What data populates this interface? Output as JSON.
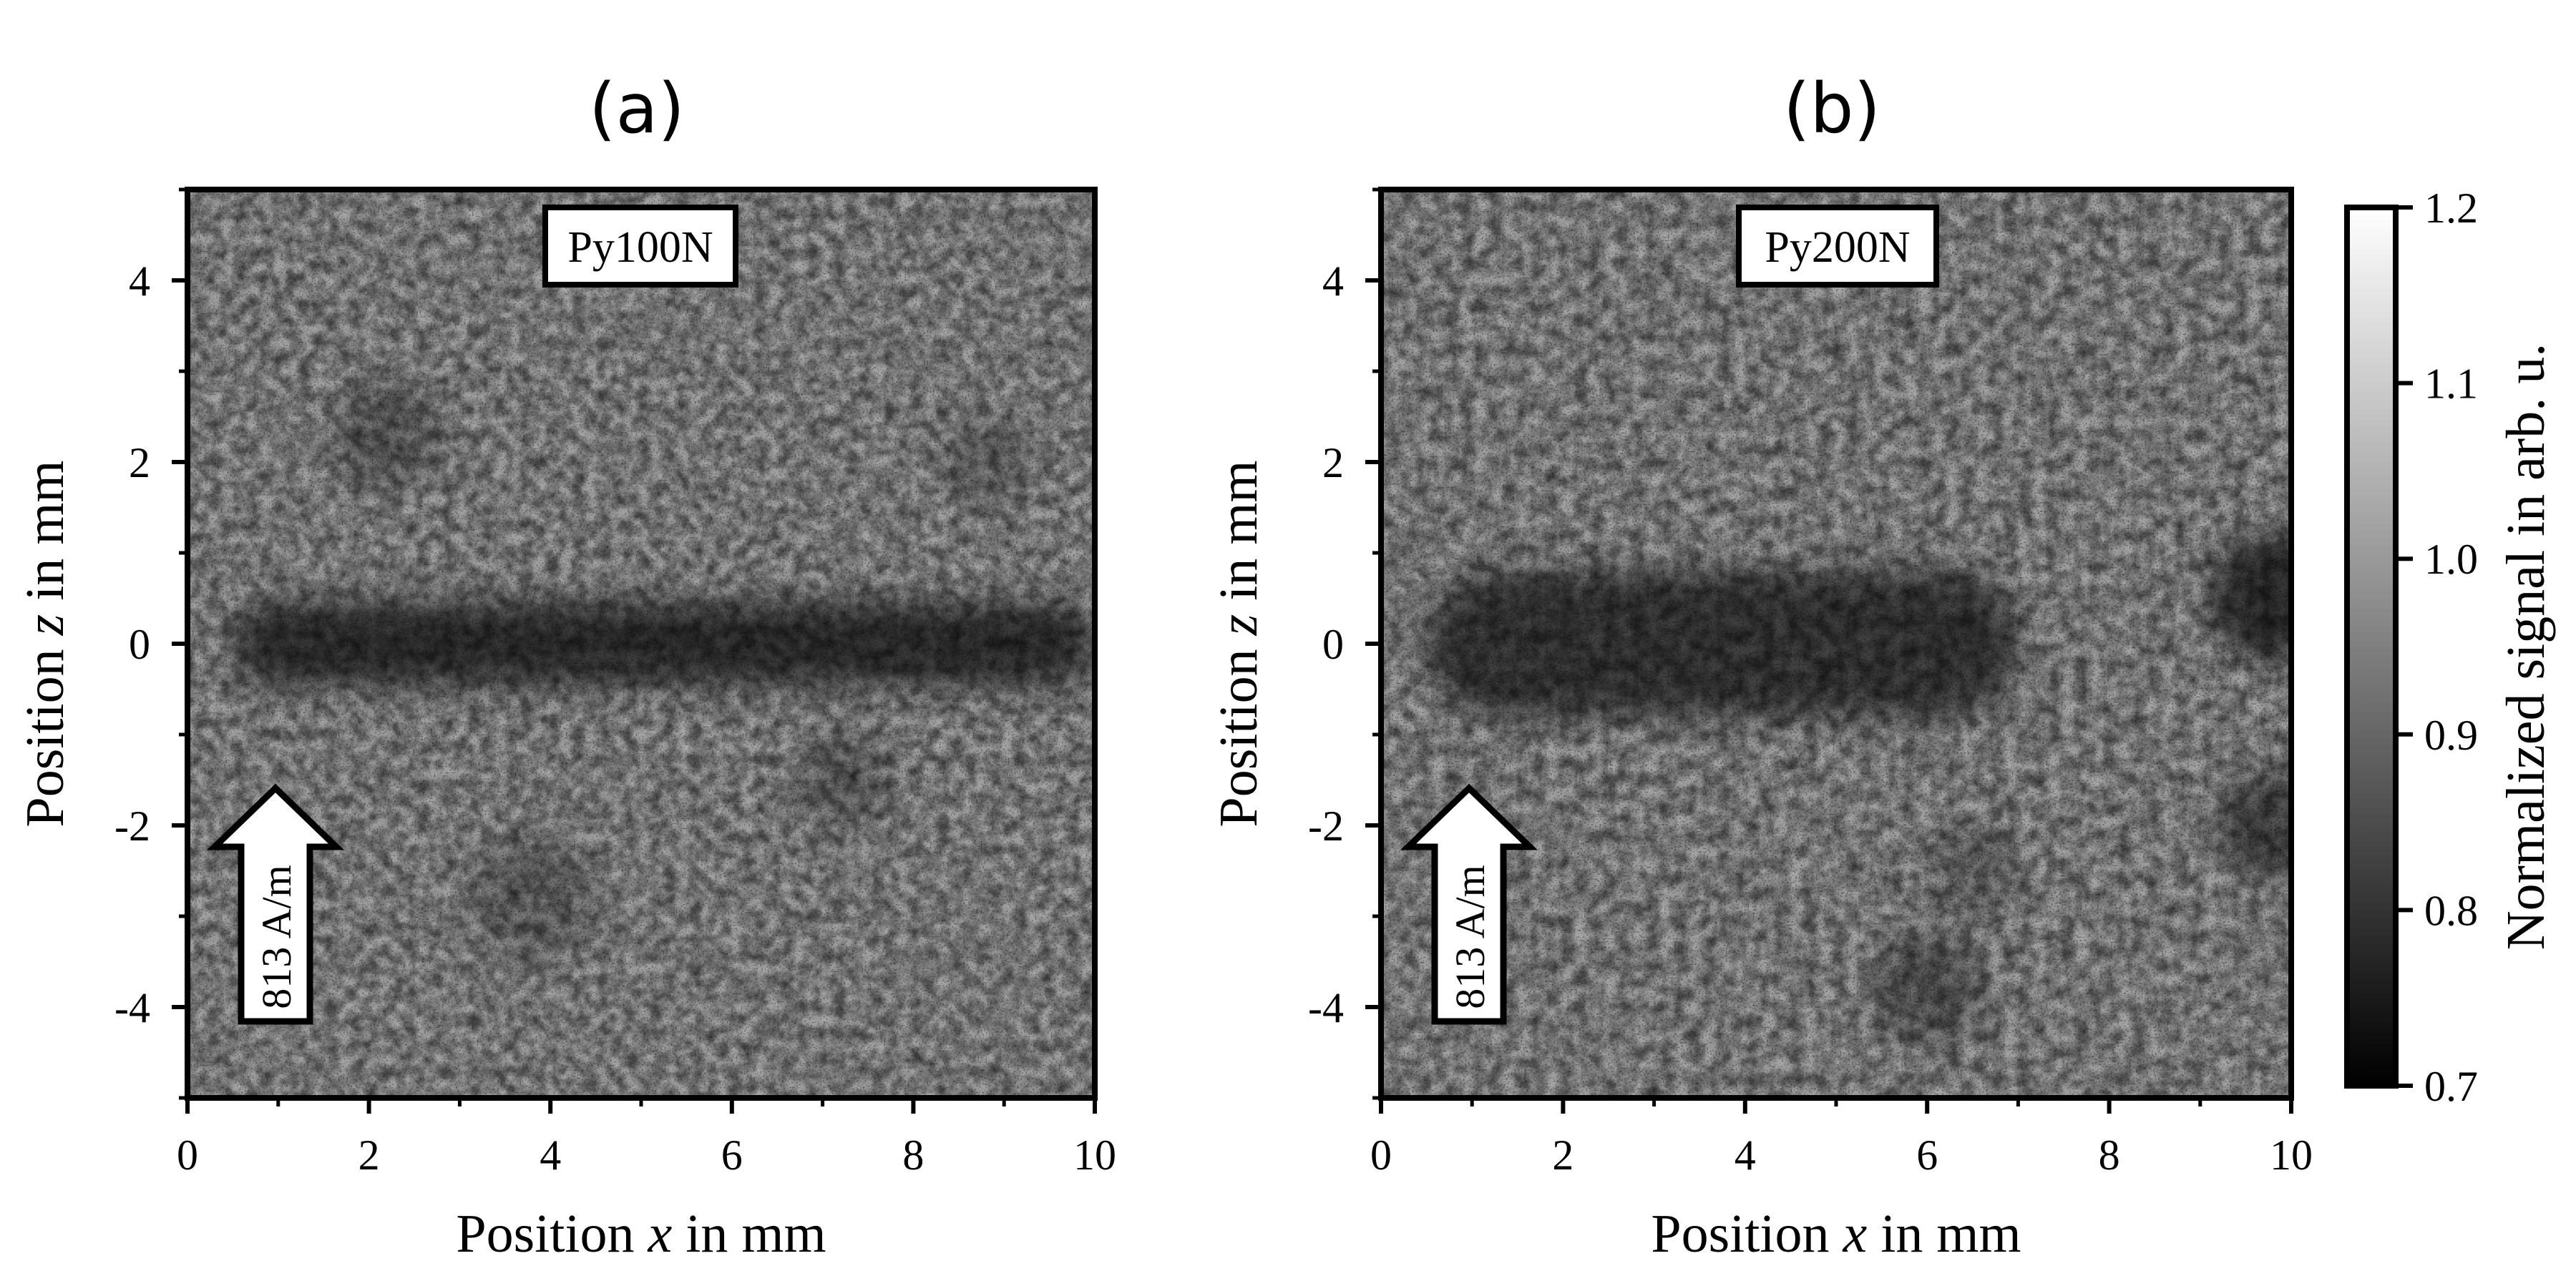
{
  "chart_data": [
    {
      "type": "heatmap",
      "panel_label": "(a)",
      "sample_label": "Py100N",
      "xlabel_prefix": "Position",
      "xlabel_var": "x",
      "xlabel_suffix": "in mm",
      "ylabel_prefix": "Position",
      "ylabel_var": "z",
      "ylabel_suffix": "in mm",
      "xlim": [
        0,
        10
      ],
      "ylim": [
        -5,
        5
      ],
      "xticks": [
        "0",
        "2",
        "4",
        "6",
        "8",
        "10"
      ],
      "xtick_values": [
        0,
        2,
        4,
        6,
        8,
        10
      ],
      "yticks": [
        "4",
        "2",
        "0",
        "-2",
        "-4"
      ],
      "ytick_values": [
        4,
        2,
        0,
        -2,
        -4
      ],
      "field_arrow_label": "813 A/m",
      "dark_band": {
        "z_center": 0,
        "z_halfwidth": 0.45,
        "x_start": 0.5,
        "x_end": 10,
        "depth": 0.22
      },
      "extra_dark_blobs": [
        {
          "x": 2.2,
          "z": 2.3,
          "r": 0.6,
          "depth": 0.1
        },
        {
          "x": 3.8,
          "z": -2.8,
          "r": 0.7,
          "depth": 0.08
        },
        {
          "x": 7.2,
          "z": -1.5,
          "r": 0.5,
          "depth": 0.1
        },
        {
          "x": 8.8,
          "z": 2.0,
          "r": 0.5,
          "depth": 0.08
        }
      ],
      "colormap": "gray",
      "seed": 17
    },
    {
      "type": "heatmap",
      "panel_label": "(b)",
      "sample_label": "Py200N",
      "xlabel_prefix": "Position",
      "xlabel_var": "x",
      "xlabel_suffix": "in mm",
      "ylabel_prefix": "Position",
      "ylabel_var": "z",
      "ylabel_suffix": "in mm",
      "xlim": [
        0,
        10
      ],
      "ylim": [
        -5,
        5
      ],
      "xticks": [
        "0",
        "2",
        "4",
        "6",
        "8",
        "10"
      ],
      "xtick_values": [
        0,
        2,
        4,
        6,
        8,
        10
      ],
      "yticks": [
        "4",
        "2",
        "0",
        "-2",
        "-4"
      ],
      "ytick_values": [
        4,
        2,
        0,
        -2,
        -4
      ],
      "field_arrow_label": "813 A/m",
      "dark_band": {
        "z_center": 0,
        "z_halfwidth": 0.8,
        "x_start": 0.5,
        "x_end": 7.0,
        "depth": 0.2
      },
      "extra_dark_blobs": [
        {
          "x": 9.8,
          "z": 0.5,
          "r": 0.7,
          "depth": 0.22
        },
        {
          "x": 9.8,
          "z": -2.0,
          "r": 0.6,
          "depth": 0.16
        },
        {
          "x": 6.0,
          "z": -3.8,
          "r": 0.6,
          "depth": 0.12
        },
        {
          "x": 6.5,
          "z": -2.5,
          "r": 0.5,
          "depth": 0.08
        }
      ],
      "colormap": "gray",
      "seed": 41
    }
  ],
  "colorbar": {
    "label": "Normalized signal in arb. u.",
    "vmin": 0.7,
    "vmax": 1.2,
    "tick_values": [
      0.7,
      0.8,
      0.9,
      1.0,
      1.1,
      1.2
    ],
    "ticks": [
      "0.7",
      "0.8",
      "0.9",
      "1.0",
      "1.1",
      "1.2"
    ]
  }
}
